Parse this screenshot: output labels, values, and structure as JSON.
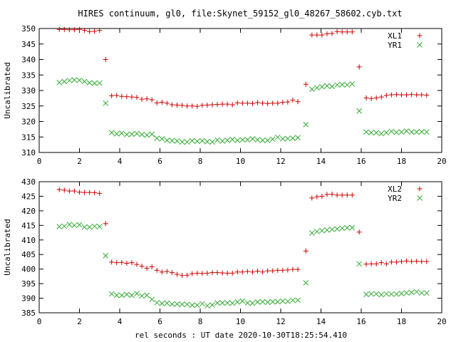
{
  "title": "HIRES continuum, gl0, file:Skynet_59152_gl0_48267_58602.cyb.txt",
  "xlabel": "rel seconds : UT date 2020-10-30T18:25:54.410",
  "chart_data": [
    {
      "type": "scatter",
      "ylabel": "Uncalibrated",
      "xlim": [
        0,
        20
      ],
      "ylim": [
        310,
        350
      ],
      "xticks": [
        0,
        2,
        4,
        6,
        8,
        10,
        12,
        14,
        16,
        18,
        20
      ],
      "yticks": [
        310,
        315,
        320,
        325,
        330,
        335,
        340,
        345,
        350
      ],
      "legend_position": "top-right",
      "series": [
        {
          "name": "XL1",
          "marker": "plus",
          "color": "#cc0000",
          "x": [
            1.0,
            1.25,
            1.5,
            1.75,
            2.0,
            2.25,
            2.5,
            2.75,
            3.0,
            3.3,
            3.6,
            3.85,
            4.1,
            4.35,
            4.6,
            4.85,
            5.1,
            5.35,
            5.6,
            5.85,
            6.1,
            6.35,
            6.6,
            6.85,
            7.1,
            7.35,
            7.6,
            7.85,
            8.1,
            8.35,
            8.6,
            8.85,
            9.1,
            9.35,
            9.6,
            9.85,
            10.1,
            10.35,
            10.6,
            10.85,
            11.1,
            11.35,
            11.6,
            11.85,
            12.1,
            12.35,
            12.6,
            12.85,
            13.25,
            13.55,
            13.8,
            14.05,
            14.3,
            14.55,
            14.8,
            15.05,
            15.3,
            15.55,
            15.9,
            16.25,
            16.5,
            16.75,
            17.0,
            17.25,
            17.5,
            17.75,
            18.0,
            18.25,
            18.5,
            18.75,
            19.0,
            19.25
          ],
          "y": [
            349.7,
            349.7,
            349.6,
            349.6,
            349.7,
            349.4,
            349.0,
            349.1,
            349.4,
            340.0,
            328.3,
            328.4,
            328.1,
            328.0,
            327.9,
            327.8,
            327.2,
            327.3,
            327.0,
            326.0,
            326.2,
            325.9,
            325.4,
            325.3,
            325.2,
            325.0,
            325.0,
            324.9,
            325.2,
            325.3,
            325.4,
            325.5,
            325.6,
            325.6,
            325.4,
            326.0,
            325.9,
            325.9,
            325.8,
            326.1,
            325.9,
            325.8,
            325.9,
            325.9,
            326.2,
            326.3,
            326.9,
            326.4,
            332.0,
            347.9,
            347.9,
            347.9,
            348.3,
            348.4,
            349.0,
            348.9,
            348.9,
            348.9,
            337.6,
            327.6,
            327.4,
            327.6,
            327.9,
            328.4,
            328.6,
            328.7,
            328.6,
            328.6,
            328.7,
            328.6,
            328.6,
            328.5
          ]
        },
        {
          "name": "YR1",
          "marker": "cross",
          "color": "#33aa33",
          "x": [
            1.0,
            1.25,
            1.5,
            1.75,
            2.0,
            2.25,
            2.5,
            2.75,
            3.0,
            3.3,
            3.6,
            3.85,
            4.1,
            4.35,
            4.6,
            4.85,
            5.1,
            5.35,
            5.6,
            5.85,
            6.1,
            6.35,
            6.6,
            6.85,
            7.1,
            7.35,
            7.6,
            7.85,
            8.1,
            8.35,
            8.6,
            8.85,
            9.1,
            9.35,
            9.6,
            9.85,
            10.1,
            10.35,
            10.6,
            10.85,
            11.1,
            11.35,
            11.6,
            11.85,
            12.1,
            12.35,
            12.6,
            12.85,
            13.25,
            13.55,
            13.8,
            14.05,
            14.3,
            14.55,
            14.8,
            15.05,
            15.3,
            15.55,
            15.9,
            16.25,
            16.5,
            16.75,
            17.0,
            17.25,
            17.5,
            17.75,
            18.0,
            18.25,
            18.5,
            18.75,
            19.0,
            19.25
          ],
          "y": [
            332.6,
            332.9,
            333.2,
            333.4,
            333.3,
            332.9,
            332.5,
            332.3,
            332.4,
            325.9,
            316.4,
            316.0,
            316.2,
            315.8,
            315.9,
            316.1,
            315.8,
            315.6,
            315.9,
            314.6,
            314.4,
            313.9,
            313.8,
            313.7,
            313.4,
            313.4,
            313.8,
            313.6,
            313.8,
            313.5,
            313.4,
            314.0,
            313.7,
            313.9,
            314.2,
            313.9,
            314.1,
            314.1,
            314.4,
            314.1,
            313.9,
            313.9,
            314.3,
            314.9,
            314.4,
            314.5,
            314.6,
            314.8,
            319.0,
            330.4,
            330.9,
            331.2,
            331.5,
            331.3,
            331.8,
            331.9,
            331.8,
            332.1,
            323.4,
            316.6,
            316.4,
            316.4,
            316.1,
            316.4,
            316.8,
            316.5,
            316.6,
            316.9,
            316.6,
            316.6,
            316.7,
            316.6
          ]
        }
      ]
    },
    {
      "type": "scatter",
      "ylabel": "Uncalibrated",
      "xlim": [
        0,
        20
      ],
      "ylim": [
        385,
        430
      ],
      "xticks": [
        0,
        2,
        4,
        6,
        8,
        10,
        12,
        14,
        16,
        18,
        20
      ],
      "yticks": [
        385,
        390,
        395,
        400,
        405,
        410,
        415,
        420,
        425,
        430
      ],
      "legend_position": "top-right",
      "series": [
        {
          "name": "XL2",
          "marker": "plus",
          "color": "#cc0000",
          "x": [
            1.0,
            1.25,
            1.5,
            1.75,
            2.0,
            2.25,
            2.5,
            2.75,
            3.0,
            3.3,
            3.6,
            3.85,
            4.1,
            4.35,
            4.6,
            4.85,
            5.1,
            5.35,
            5.6,
            5.85,
            6.1,
            6.35,
            6.6,
            6.85,
            7.1,
            7.35,
            7.6,
            7.85,
            8.1,
            8.35,
            8.6,
            8.85,
            9.1,
            9.35,
            9.6,
            9.85,
            10.1,
            10.35,
            10.6,
            10.85,
            11.1,
            11.35,
            11.6,
            11.85,
            12.1,
            12.35,
            12.6,
            12.85,
            13.25,
            13.55,
            13.8,
            14.05,
            14.3,
            14.55,
            14.8,
            15.05,
            15.3,
            15.55,
            15.9,
            16.25,
            16.5,
            16.75,
            17.0,
            17.25,
            17.5,
            17.75,
            18.0,
            18.25,
            18.5,
            18.75,
            19.0,
            19.25
          ],
          "y": [
            427.3,
            427.1,
            426.8,
            426.8,
            426.4,
            426.3,
            426.3,
            426.2,
            426.0,
            415.6,
            402.4,
            402.2,
            402.3,
            402.0,
            402.2,
            401.6,
            401.0,
            400.3,
            400.8,
            399.6,
            399.0,
            399.2,
            398.8,
            398.2,
            397.8,
            397.9,
            398.4,
            398.6,
            398.5,
            398.6,
            398.8,
            398.8,
            398.7,
            398.6,
            398.6,
            399.0,
            399.0,
            399.2,
            399.0,
            399.3,
            399.0,
            399.4,
            399.4,
            399.6,
            399.6,
            399.7,
            399.9,
            399.9,
            406.2,
            424.4,
            424.8,
            425.0,
            425.6,
            425.7,
            425.4,
            425.4,
            425.4,
            425.4,
            412.7,
            401.7,
            401.8,
            401.8,
            402.2,
            401.8,
            402.4,
            402.4,
            402.6,
            402.8,
            402.6,
            402.7,
            402.6,
            402.6
          ]
        },
        {
          "name": "YR2",
          "marker": "cross",
          "color": "#33aa33",
          "x": [
            1.0,
            1.25,
            1.5,
            1.75,
            2.0,
            2.25,
            2.5,
            2.75,
            3.0,
            3.3,
            3.6,
            3.85,
            4.1,
            4.35,
            4.6,
            4.85,
            5.1,
            5.35,
            5.6,
            5.85,
            6.1,
            6.35,
            6.6,
            6.85,
            7.1,
            7.35,
            7.6,
            7.85,
            8.1,
            8.35,
            8.6,
            8.85,
            9.1,
            9.35,
            9.6,
            9.85,
            10.1,
            10.35,
            10.6,
            10.85,
            11.1,
            11.35,
            11.6,
            11.85,
            12.1,
            12.35,
            12.6,
            12.85,
            13.25,
            13.55,
            13.8,
            14.05,
            14.3,
            14.55,
            14.8,
            15.05,
            15.3,
            15.55,
            15.9,
            16.25,
            16.5,
            16.75,
            17.0,
            17.25,
            17.5,
            17.75,
            18.0,
            18.25,
            18.5,
            18.75,
            19.0,
            19.25
          ],
          "y": [
            414.6,
            414.7,
            415.3,
            415.0,
            415.2,
            414.4,
            414.4,
            414.7,
            414.6,
            404.6,
            391.5,
            391.0,
            391.0,
            391.3,
            391.0,
            391.6,
            390.8,
            391.0,
            389.6,
            388.5,
            388.2,
            388.3,
            388.0,
            388.0,
            387.9,
            387.9,
            387.6,
            387.6,
            388.1,
            387.4,
            387.7,
            388.4,
            388.4,
            388.4,
            388.3,
            388.7,
            389.0,
            388.4,
            388.3,
            388.7,
            388.8,
            388.6,
            388.8,
            388.8,
            389.0,
            388.9,
            389.3,
            389.3,
            395.3,
            412.4,
            412.9,
            413.2,
            413.4,
            413.6,
            413.8,
            414.0,
            414.2,
            414.2,
            401.8,
            391.3,
            391.5,
            391.5,
            391.2,
            391.5,
            391.4,
            391.4,
            391.6,
            391.8,
            392.0,
            392.2,
            391.8,
            391.8
          ]
        }
      ]
    }
  ]
}
